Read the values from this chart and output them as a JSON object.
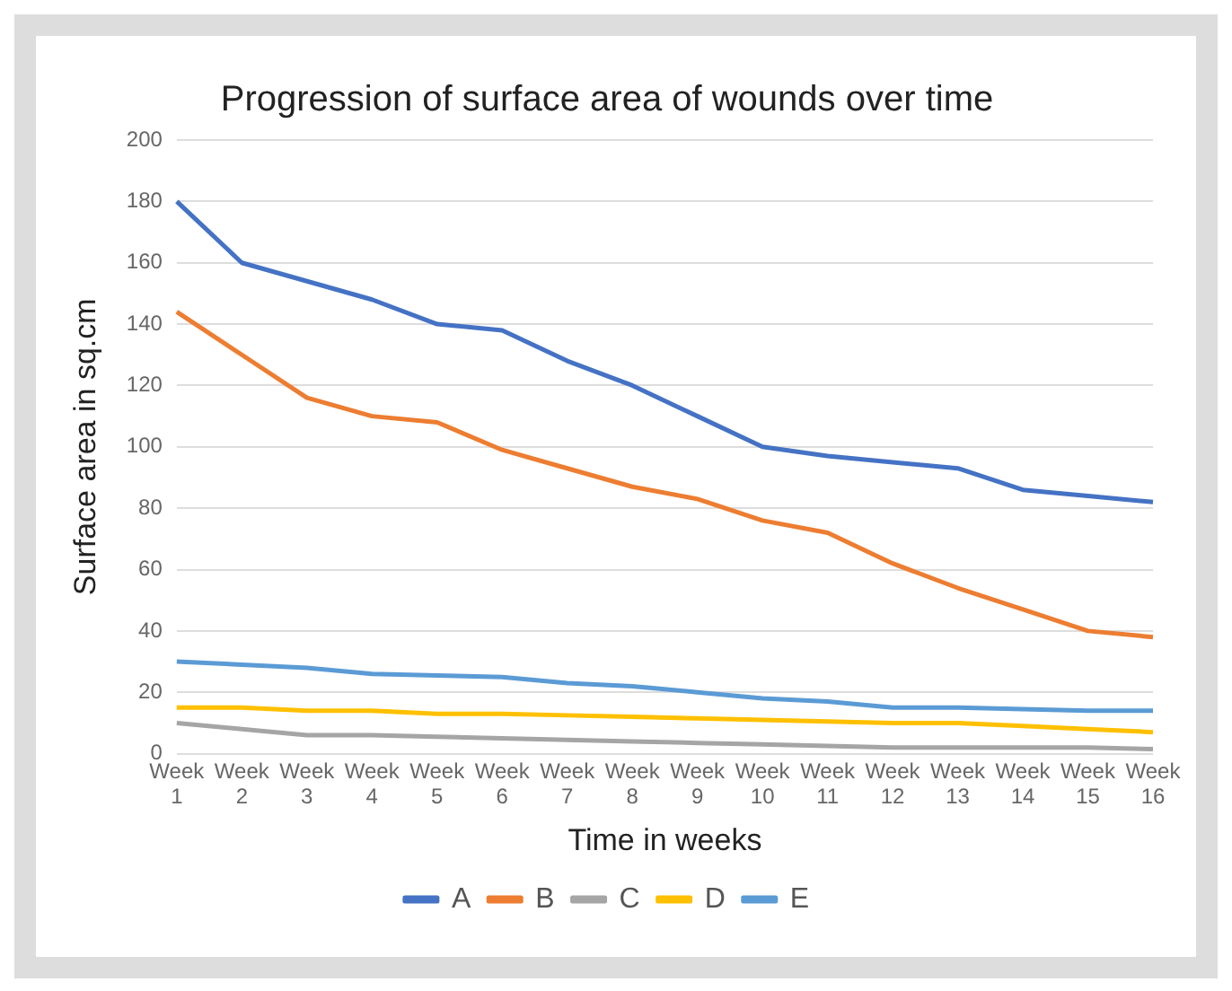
{
  "chart_data": {
    "type": "line",
    "title": "Progression of surface area of wounds over time",
    "xlabel": "Time in weeks",
    "ylabel": "Surface area in sq.cm",
    "categories": [
      "Week 1",
      "Week 2",
      "Week 3",
      "Week 4",
      "Week 5",
      "Week 6",
      "Week 7",
      "Week 8",
      "Week 9",
      "Week 10",
      "Week 11",
      "Week 12",
      "Week 13",
      "Week 14",
      "Week 15",
      "Week 16"
    ],
    "series": [
      {
        "name": "A",
        "color": "#4472c4",
        "values": [
          180,
          160,
          154,
          148,
          140,
          138,
          128,
          120,
          110,
          100,
          97,
          95,
          93,
          86,
          84,
          82
        ]
      },
      {
        "name": "B",
        "color": "#ed7d31",
        "values": [
          144,
          130,
          116,
          110,
          108,
          99,
          93,
          87,
          83,
          76,
          72,
          62,
          54,
          47,
          40,
          38
        ]
      },
      {
        "name": "C",
        "color": "#a5a5a5",
        "values": [
          10,
          8,
          6,
          6,
          5.5,
          5,
          4.5,
          4,
          3.5,
          3,
          2.5,
          2,
          2,
          2,
          2,
          1.5
        ]
      },
      {
        "name": "D",
        "color": "#ffc000",
        "values": [
          15,
          15,
          14,
          14,
          13,
          13,
          12.5,
          12,
          11.5,
          11,
          10.5,
          10,
          10,
          9,
          8,
          7
        ]
      },
      {
        "name": "E",
        "color": "#5b9bd5",
        "values": [
          30,
          29,
          28,
          26,
          25.5,
          25,
          23,
          22,
          20,
          18,
          17,
          15,
          15,
          14.5,
          14,
          14
        ]
      }
    ],
    "ylim": [
      0,
      200
    ],
    "yticks": [
      0,
      20,
      40,
      60,
      80,
      100,
      120,
      140,
      160,
      180,
      200
    ],
    "grid": "y",
    "legend": "bottom",
    "marker": "none",
    "line_style": "solid"
  }
}
